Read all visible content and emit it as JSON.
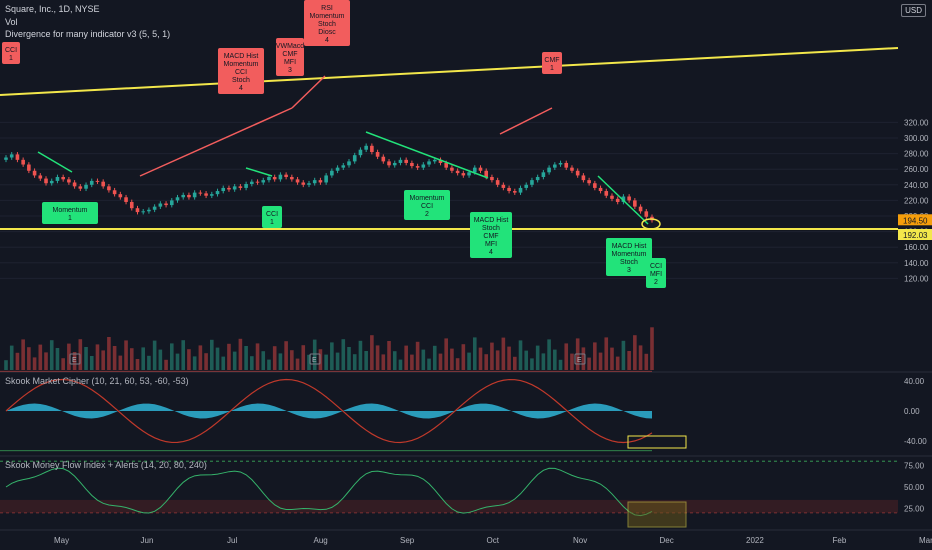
{
  "header": {
    "symbol": "Square, Inc., 1D, NYSE",
    "volume_label": "Vol",
    "indicator": "Divergence for many indicator v3 (5, 5, 1)",
    "currency": "USD"
  },
  "panes": {
    "cipher_title": "Skook Market Cipher (10, 21, 60, 53, -60, -53)",
    "mfi_title": "Skook Money Flow Index + Alerts (14, 20, 80, 240)"
  },
  "chart_data": {
    "type": "candlestick",
    "x_ticks": [
      "May",
      "Jun",
      "Jul",
      "Aug",
      "Sep",
      "Oct",
      "Nov",
      "Dec",
      "2022",
      "Feb",
      "Mar"
    ],
    "y_ticks_price": [
      "320.00",
      "300.00",
      "280.00",
      "260.00",
      "240.00",
      "220.00",
      "200.00",
      "180.00",
      "160.00",
      "140.00",
      "120.00"
    ],
    "y_ticks_cipher": [
      "40.00",
      "0.00",
      "-40.00"
    ],
    "y_ticks_mfi": [
      "75.00",
      "50.00",
      "25.00"
    ],
    "price_labels": {
      "last": "194.50",
      "level": "192.03"
    },
    "closes": [
      275,
      279,
      272,
      266,
      258,
      252,
      248,
      242,
      245,
      250,
      247,
      243,
      238,
      235,
      240,
      245,
      244,
      238,
      233,
      228,
      224,
      218,
      210,
      205,
      206,
      208,
      212,
      216,
      214,
      220,
      224,
      227,
      224,
      230,
      229,
      226,
      228,
      232,
      236,
      234,
      238,
      236,
      241,
      244,
      243,
      246,
      250,
      247,
      253,
      250,
      247,
      243,
      240,
      242,
      246,
      243,
      252,
      258,
      262,
      265,
      270,
      278,
      285,
      290,
      282,
      276,
      270,
      265,
      268,
      272,
      268,
      264,
      262,
      266,
      270,
      272,
      268,
      262,
      258,
      255,
      252,
      256,
      262,
      258,
      250,
      246,
      240,
      236,
      232,
      230,
      236,
      240,
      246,
      250,
      256,
      262,
      266,
      268,
      262,
      258,
      252,
      246,
      242,
      236,
      232,
      226,
      222,
      218,
      225,
      220,
      212,
      206,
      199,
      194.5
    ],
    "divergence_labels_top": [
      {
        "text": "CCI\n1"
      },
      {
        "text": "MACD Hist\nMomentum\nCCI\nStoch\n4"
      },
      {
        "text": "VWMacd\nCMF\nMFI\n3"
      },
      {
        "text": "RSI\nMomentum\nStoch\nDiosc\n4"
      },
      {
        "text": "CMF\n1"
      }
    ],
    "divergence_labels_bottom": [
      {
        "text": "Momentum\n1"
      },
      {
        "text": "CCI\n1"
      },
      {
        "text": "Momentum\nCCI\n2"
      },
      {
        "text": "MACD Hist\nStoch\nCMF\nMFI\n4"
      },
      {
        "text": "MACD Hist\nMomentum\nStoch\n3"
      },
      {
        "text": "CCI\nMFI\n2"
      }
    ]
  },
  "colors": {
    "bg": "#131722",
    "up": "#26a69a",
    "down": "#ef5350",
    "trend": "#f3e74b",
    "bull": "#22e37a",
    "bear": "#f25d5d",
    "cipher": "#2fb4d6",
    "grid": "#1e2230"
  }
}
